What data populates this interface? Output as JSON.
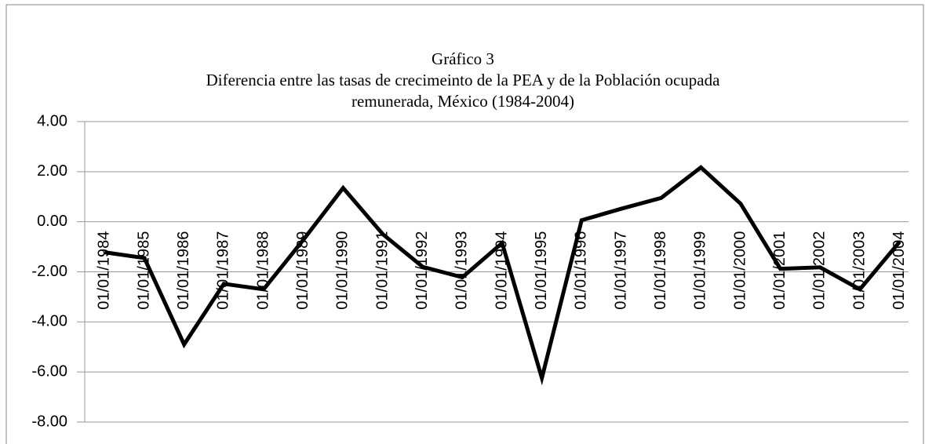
{
  "chart_data": {
    "type": "line",
    "title": "Gráfico 3",
    "subtitle": [
      "Diferencia entre las tasas de crecimeinto de la PEA y de la Población ocupada",
      "remunerada, México  (1984-2004)"
    ],
    "categories": [
      "01/01/1984",
      "01/01/1985",
      "01/01/1986",
      "01/01/1987",
      "01/01/1988",
      "01/01/1989",
      "01/01/1990",
      "01/01/1991",
      "01/01/1992",
      "01/01/1993",
      "01/01/1994",
      "01/01/1995",
      "01/01/1996",
      "01/01/1997",
      "01/01/1998",
      "01/01/1999",
      "01/01/2000",
      "01/01/2001",
      "01/01/2002",
      "01/01/2003",
      "01/01/2004"
    ],
    "values": [
      -1.22,
      -1.45,
      -4.9,
      -2.48,
      -2.7,
      -0.72,
      1.35,
      -0.5,
      -1.8,
      -2.22,
      -0.85,
      -6.24,
      0.06,
      0.52,
      0.95,
      2.17,
      0.72,
      -1.88,
      -1.82,
      -2.7,
      -0.8
    ],
    "color": "#000000",
    "ylim": [
      -8,
      4
    ],
    "yticks": [
      {
        "value": -8,
        "label": "-8.00"
      },
      {
        "value": -6,
        "label": "-6.00"
      },
      {
        "value": -4,
        "label": "-4.00"
      },
      {
        "value": -2,
        "label": "-2.00"
      },
      {
        "value": 0,
        "label": "0.00"
      },
      {
        "value": 2,
        "label": "2.00"
      },
      {
        "value": 4,
        "label": "4.00"
      }
    ],
    "grid": true
  }
}
